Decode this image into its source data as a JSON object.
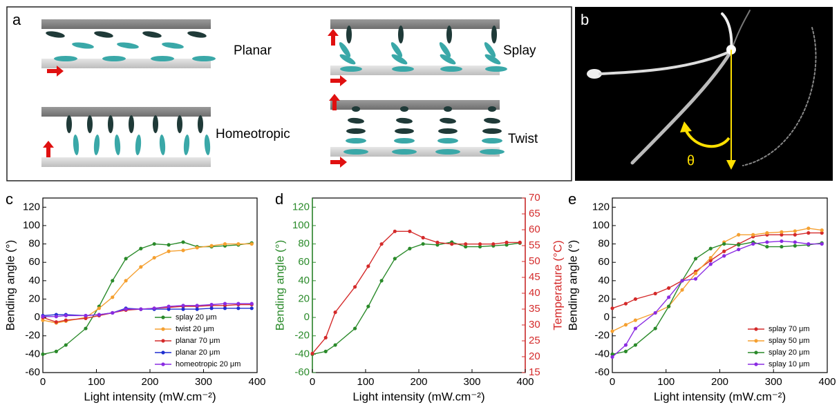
{
  "diagram": {
    "panel_a": {
      "label": "a",
      "planar": "Planar",
      "splay": "Splay",
      "homeotropic": "Homeotropic",
      "twist": "Twist"
    },
    "panel_b": {
      "label": "b",
      "angle": "θ"
    }
  },
  "chart_data": [
    {
      "type": "line",
      "panel_label": "c",
      "xlabel": "Light intensity (mW.cm⁻²)",
      "ylabel": "Bending angle (°)",
      "xlim": [
        0,
        400
      ],
      "xticks": [
        0,
        100,
        200,
        300,
        400
      ],
      "ylim": [
        -60,
        130
      ],
      "yticks": [
        -60,
        -40,
        -20,
        0,
        20,
        40,
        60,
        80,
        100,
        120
      ],
      "legend": "lower right",
      "x": [
        0,
        25,
        43,
        80,
        105,
        130,
        155,
        183,
        208,
        235,
        262,
        288,
        315,
        340,
        365,
        390
      ],
      "series": [
        {
          "name": "splay 20 μm",
          "color": "#2a8a2a",
          "values": [
            -40,
            -37,
            -30,
            -12,
            12,
            40,
            64,
            75,
            80,
            79,
            82,
            77,
            77,
            78,
            79,
            81
          ]
        },
        {
          "name": "twist 20 μm",
          "color": "#f5a030",
          "values": [
            -3,
            -6,
            -4,
            0,
            10,
            22,
            40,
            55,
            65,
            72,
            73,
            76,
            78,
            80,
            80,
            80
          ]
        },
        {
          "name": "planar 70 μm",
          "color": "#d42a2a",
          "values": [
            0,
            -5,
            -3,
            -1,
            2,
            5,
            8,
            9,
            10,
            11,
            12,
            12,
            13,
            13,
            14,
            14
          ]
        },
        {
          "name": "planar 20 μm",
          "color": "#1f2fd0",
          "values": [
            2,
            3,
            3,
            2,
            3,
            5,
            10,
            9,
            9,
            9,
            9,
            9,
            10,
            10,
            10,
            10
          ]
        },
        {
          "name": "homeotropic 20 μm",
          "color": "#8a2be2",
          "values": [
            1,
            1,
            2,
            2,
            3,
            5,
            9,
            9,
            10,
            12,
            13,
            13,
            14,
            15,
            15,
            15
          ]
        }
      ]
    },
    {
      "type": "line",
      "panel_label": "d",
      "xlabel": "Light intensity (mW.cm⁻²)",
      "ylabel": "Bending angle (°)",
      "y2label": "Temperature (°C)",
      "xlim": [
        0,
        400
      ],
      "xticks": [
        0,
        100,
        200,
        300,
        400
      ],
      "ylim": [
        -60,
        130
      ],
      "yticks": [
        -60,
        -40,
        -20,
        0,
        20,
        40,
        60,
        80,
        100,
        120
      ],
      "y2lim": [
        15,
        70
      ],
      "y2ticks": [
        15,
        20,
        25,
        30,
        35,
        40,
        45,
        50,
        55,
        60,
        65,
        70
      ],
      "yaxis_color": "#2a8a2a",
      "y2axis_color": "#d42a2a",
      "x": [
        0,
        25,
        43,
        80,
        105,
        130,
        155,
        183,
        208,
        235,
        262,
        288,
        315,
        340,
        365,
        390
      ],
      "series": [
        {
          "color": "#2a8a2a",
          "values": [
            -40,
            -37,
            -30,
            -12,
            12,
            40,
            64,
            75,
            80,
            79,
            82,
            77,
            77,
            78,
            79,
            81
          ]
        },
        {
          "color": "#d42a2a",
          "axis": "y2",
          "values": [
            21,
            26,
            34,
            42,
            48.5,
            55.5,
            59.5,
            59.5,
            57.5,
            56,
            55.5,
            55.5,
            55.5,
            55.5,
            56,
            56
          ]
        }
      ]
    },
    {
      "type": "line",
      "panel_label": "e",
      "xlabel": "Light intensity (mW.cm⁻²)",
      "ylabel": "Bending angle (°)",
      "xlim": [
        0,
        400
      ],
      "xticks": [
        0,
        100,
        200,
        300,
        400
      ],
      "ylim": [
        -60,
        130
      ],
      "yticks": [
        -60,
        -40,
        -20,
        0,
        20,
        40,
        60,
        80,
        100,
        120
      ],
      "legend": "lower right",
      "x": [
        0,
        25,
        43,
        80,
        105,
        130,
        155,
        183,
        208,
        235,
        262,
        288,
        315,
        340,
        365,
        390
      ],
      "series": [
        {
          "name": "splay 70 μm",
          "color": "#d42a2a",
          "values": [
            10,
            15,
            20,
            26,
            32,
            40,
            50,
            62,
            72,
            80,
            88,
            90,
            90,
            90,
            92,
            92
          ]
        },
        {
          "name": "splay 50 μm",
          "color": "#f5a030",
          "values": [
            -15,
            -8,
            -3,
            5,
            12,
            30,
            48,
            65,
            82,
            90,
            90,
            92,
            93,
            94,
            97,
            95
          ]
        },
        {
          "name": "splay 20 μm",
          "color": "#2a8a2a",
          "values": [
            -40,
            -37,
            -30,
            -12,
            12,
            40,
            64,
            75,
            80,
            79,
            82,
            77,
            77,
            78,
            79,
            81
          ]
        },
        {
          "name": "splay 10 μm",
          "color": "#8a2be2",
          "values": [
            -43,
            -30,
            -12,
            5,
            22,
            40,
            42,
            58,
            67,
            74,
            80,
            82,
            83,
            82,
            80,
            80
          ]
        }
      ]
    }
  ]
}
